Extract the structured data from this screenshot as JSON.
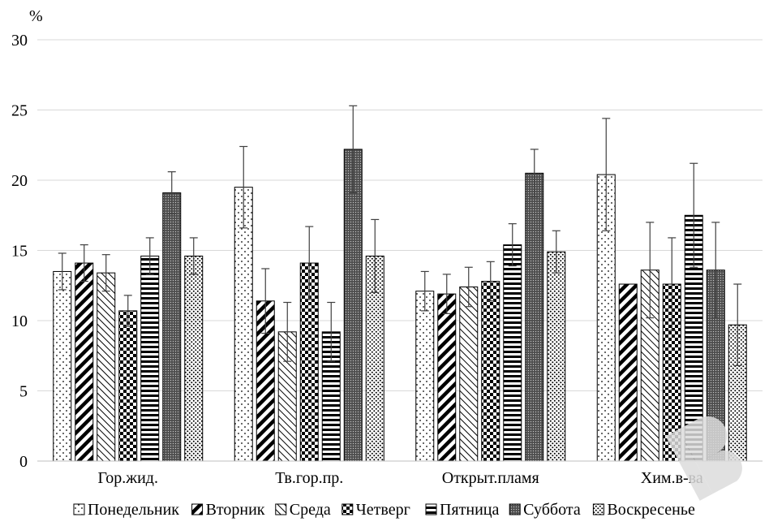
{
  "chart_data": {
    "type": "bar",
    "ylabel": "%",
    "ylim": [
      0,
      30
    ],
    "yticks": [
      0,
      5,
      10,
      15,
      20,
      25,
      30
    ],
    "grid": true,
    "legend_position": "bottom",
    "categories": [
      "Гор.жид.",
      "Тв.гор.пр.",
      "Открыт.пламя",
      "Хим.в-ва"
    ],
    "series": [
      {
        "name": "Понедельник",
        "pattern": "dots",
        "values": [
          13.5,
          19.5,
          12.1,
          20.4
        ],
        "errors": [
          1.3,
          2.9,
          1.4,
          4.0
        ]
      },
      {
        "name": "Вторник",
        "pattern": "thick-diagonal",
        "values": [
          14.1,
          11.4,
          11.9,
          12.6
        ],
        "errors": [
          1.3,
          2.3,
          1.4,
          0
        ]
      },
      {
        "name": "Среда",
        "pattern": "thin-diagonal",
        "values": [
          13.4,
          9.2,
          12.4,
          13.6
        ],
        "errors": [
          1.3,
          2.1,
          1.4,
          3.4
        ]
      },
      {
        "name": "Четверг",
        "pattern": "checker",
        "values": [
          10.7,
          14.1,
          12.8,
          12.6
        ],
        "errors": [
          1.1,
          2.6,
          1.4,
          3.3
        ]
      },
      {
        "name": "Пятница",
        "pattern": "horizontal",
        "values": [
          14.6,
          9.2,
          15.4,
          17.5
        ],
        "errors": [
          1.3,
          2.1,
          1.5,
          3.7
        ]
      },
      {
        "name": "Суббота",
        "pattern": "dark-dense",
        "values": [
          19.1,
          22.2,
          20.5,
          13.6
        ],
        "errors": [
          1.5,
          3.1,
          1.7,
          3.4
        ]
      },
      {
        "name": "Воскресенье",
        "pattern": "dense-dots",
        "values": [
          14.6,
          14.6,
          14.9,
          9.7
        ],
        "errors": [
          1.3,
          2.6,
          1.5,
          2.9
        ]
      }
    ]
  }
}
